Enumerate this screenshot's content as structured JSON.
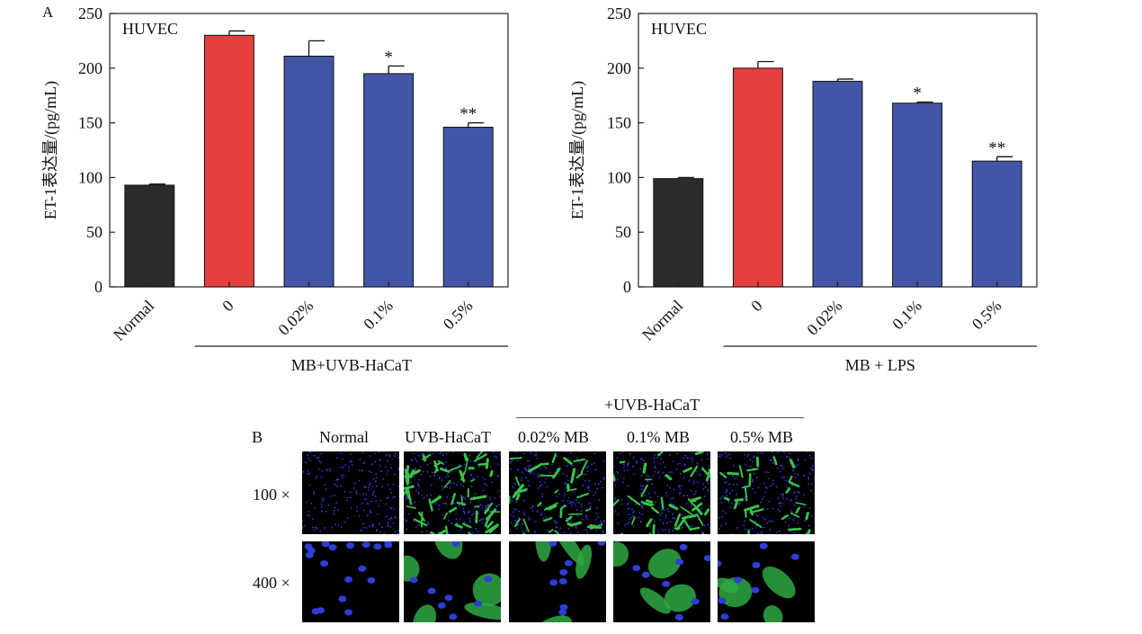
{
  "colors": {
    "normal": "#2b2b2b",
    "control": "#e53e3e",
    "treated": "#4355a6"
  },
  "panel_a": {
    "label": "A"
  },
  "panel_b": {
    "label": "B",
    "group_header": "+UVB-HaCaT",
    "columns": [
      "Normal",
      "UVB-HaCaT",
      "0.02% MB",
      "0.1% MB",
      "0.5% MB"
    ],
    "rows": [
      "100 ×",
      "400 ×"
    ]
  },
  "chart_data": [
    {
      "type": "bar",
      "inset": "HUVEC",
      "ylabel": "ET-1表达量/(pg/mL)",
      "ylim": [
        0,
        250
      ],
      "yticks": [
        0,
        50,
        100,
        150,
        200,
        250
      ],
      "categories": [
        "Normal",
        "0",
        "0.02%",
        "0.1%",
        "0.5%"
      ],
      "values": [
        93,
        230,
        211,
        195,
        146
      ],
      "errors": [
        1,
        4,
        14,
        7,
        4
      ],
      "significance": [
        "",
        "",
        "",
        "*",
        "**"
      ],
      "group_label": "MB+UVB-HaCaT"
    },
    {
      "type": "bar",
      "inset": "HUVEC",
      "ylabel": "ET-1表达量/(pg/mL)",
      "ylim": [
        0,
        250
      ],
      "yticks": [
        0,
        50,
        100,
        150,
        200,
        250
      ],
      "categories": [
        "Normal",
        "0",
        "0.02%",
        "0.1%",
        "0.5%"
      ],
      "values": [
        99,
        200,
        188,
        168,
        115
      ],
      "errors": [
        1,
        6,
        2,
        1,
        4
      ],
      "significance": [
        "",
        "",
        "",
        "*",
        "**"
      ],
      "group_label": "MB + LPS"
    }
  ]
}
